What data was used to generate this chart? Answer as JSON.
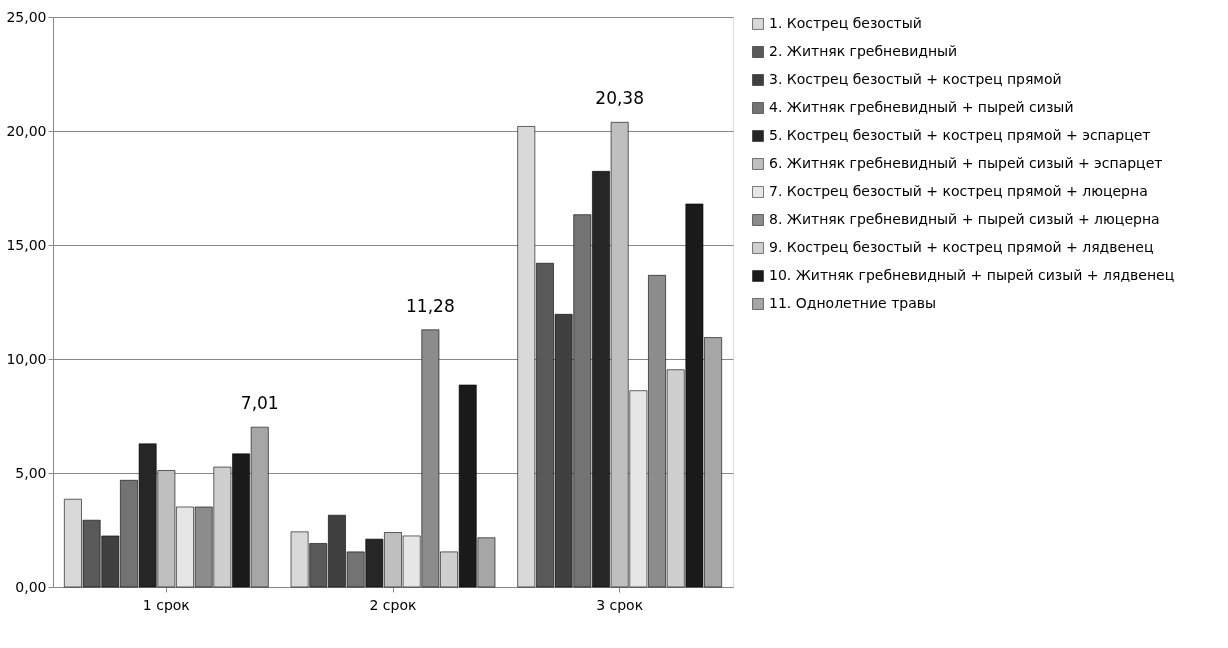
{
  "chart_data": {
    "type": "bar",
    "categories": [
      "1 срок",
      "2 срок",
      "3 срок"
    ],
    "series": [
      {
        "name": "1. Кострец безостый",
        "color": "#d9d9d9",
        "values": [
          3.85,
          2.42,
          20.2
        ]
      },
      {
        "name": "2. Житняк гребневидный",
        "color": "#595959",
        "values": [
          2.93,
          1.91,
          14.2
        ]
      },
      {
        "name": "3. Кострец безостый + кострец прямой",
        "color": "#404040",
        "values": [
          2.24,
          3.15,
          11.96
        ]
      },
      {
        "name": "4. Житняк гребневидный + пырей сизый",
        "color": "#737373",
        "values": [
          4.68,
          1.54,
          16.33
        ]
      },
      {
        "name": "5. Кострец безостый + кострец прямой + эспарцет",
        "color": "#262626",
        "values": [
          6.28,
          2.1,
          18.23
        ]
      },
      {
        "name": "6. Житняк гребневидный + пырей сизый + эспарцет",
        "color": "#bfbfbf",
        "values": [
          5.11,
          2.39,
          20.38
        ],
        "value_labels": [
          null,
          null,
          "20,38"
        ]
      },
      {
        "name": "7. Кострец безостый + кострец прямой + люцерна",
        "color": "#e6e6e6",
        "values": [
          3.51,
          2.24,
          8.61
        ]
      },
      {
        "name": "8. Житняк гребневидный + пырей сизый + люцерна",
        "color": "#8c8c8c",
        "values": [
          3.51,
          11.28,
          13.67
        ],
        "value_labels": [
          null,
          "11,28",
          null
        ]
      },
      {
        "name": "9. Кострец безостый + кострец прямой + лядвенец",
        "color": "#cfcfcf",
        "values": [
          5.26,
          1.54,
          9.53
        ]
      },
      {
        "name": "10. Житняк гребневидный + пырей сизый + лядвенец",
        "color": "#1a1a1a",
        "values": [
          5.84,
          8.86,
          16.8
        ]
      },
      {
        "name": "11. Однолетние травы",
        "color": "#a6a6a6",
        "values": [
          7.01,
          2.16,
          10.94
        ],
        "value_labels": [
          "7,01",
          null,
          null
        ]
      }
    ],
    "ylim": [
      0,
      25
    ],
    "yticks": [
      {
        "value": 0,
        "label": "0,00"
      },
      {
        "value": 5,
        "label": "5,00"
      },
      {
        "value": 10,
        "label": "10,00"
      },
      {
        "value": 15,
        "label": "15,00"
      },
      {
        "value": 20,
        "label": "20,00"
      },
      {
        "value": 25,
        "label": "25,00"
      }
    ],
    "grid": "y",
    "legend": "right"
  }
}
